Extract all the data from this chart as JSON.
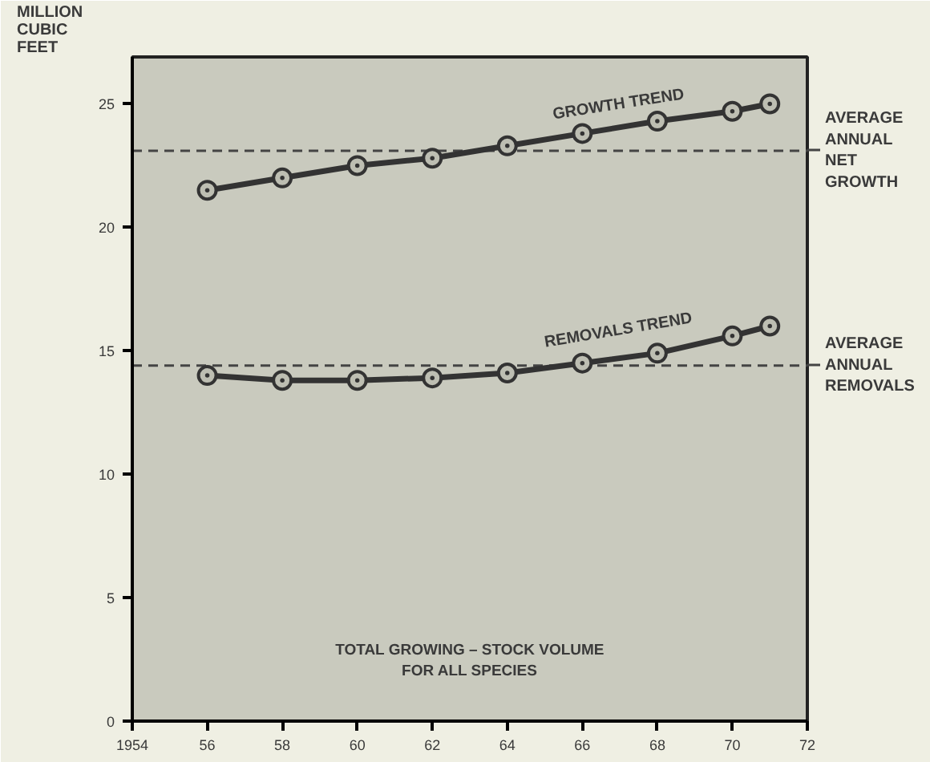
{
  "chart_data": {
    "type": "line",
    "ylabel": "MILLION CUBIC FEET",
    "x": [
      1956,
      1958,
      1960,
      1962,
      1964,
      1966,
      1968,
      1970,
      1971
    ],
    "series": [
      {
        "name": "GROWTH TREND",
        "color": "#333333",
        "values": [
          21.5,
          22.0,
          22.5,
          22.8,
          23.3,
          23.8,
          24.3,
          24.7,
          25.0
        ]
      },
      {
        "name": "REMOVALS TREND",
        "color": "#333333",
        "values": [
          14.0,
          13.8,
          13.8,
          13.9,
          14.1,
          14.5,
          14.9,
          15.6,
          16.0
        ]
      }
    ],
    "xlim": [
      1954,
      1972
    ],
    "ylim": [
      0,
      26.9
    ],
    "xticks": [
      1954,
      {
        "value": 1956,
        "label": "56"
      },
      {
        "value": 1958,
        "label": "58"
      },
      {
        "value": 1960,
        "label": "60"
      },
      {
        "value": 1962,
        "label": "62"
      },
      {
        "value": 1964,
        "label": "64"
      },
      {
        "value": 1966,
        "label": "66"
      },
      {
        "value": 1968,
        "label": "68"
      },
      {
        "value": 1970,
        "label": "70"
      },
      {
        "value": 1972,
        "label": "72"
      }
    ],
    "yticks": [
      0,
      5,
      10,
      15,
      20,
      25
    ],
    "ref_lines": [
      {
        "axis": "y",
        "value": 23.1,
        "label": "AVERAGE ANNUAL NET GROWTH",
        "line_style": "dashed",
        "color": "#444444"
      },
      {
        "axis": "y",
        "value": 14.4,
        "label": "AVERAGE ANNUAL REMOVALS",
        "line_style": "dashed",
        "color": "#444444"
      }
    ],
    "annotations": [
      "TOTAL GROWING – STOCK VOLUME\nFOR ALL SPECIES"
    ],
    "marker": "circle",
    "line_style": "solid",
    "grid": false
  }
}
